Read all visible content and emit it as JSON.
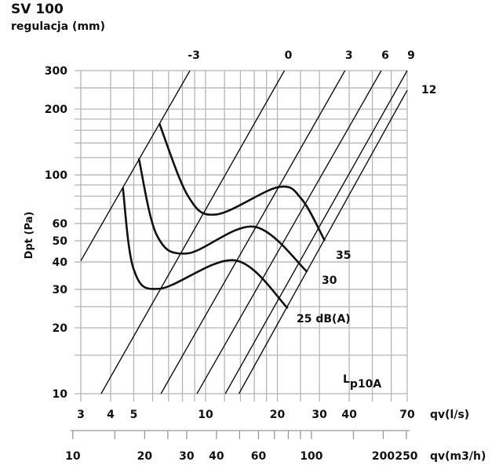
{
  "chart_data": {
    "type": "line",
    "title": "SV 100",
    "subtitle": "regulacja (mm)",
    "xlabel": "qv(l/s)",
    "xlabel2": "qv(m3/h)",
    "ylabel": "Dpt (Pa)",
    "xscale": "log",
    "yscale": "log",
    "xlim": [
      3,
      70
    ],
    "ylim": [
      10,
      300
    ],
    "grid": true,
    "x_grid": [
      3,
      4,
      5,
      6,
      7,
      8,
      9,
      10,
      12,
      14,
      16,
      18,
      20,
      25,
      30,
      40,
      50,
      60,
      70
    ],
    "y_grid": [
      10,
      15,
      20,
      25,
      30,
      40,
      50,
      60,
      70,
      80,
      90,
      100,
      120,
      140,
      160,
      180,
      200,
      250,
      300
    ],
    "x_tick_labels": [
      "3",
      "4",
      "5",
      "10",
      "20",
      "30",
      "40",
      "70"
    ],
    "y_tick_labels": [
      "300",
      "200",
      "100",
      "60",
      "50",
      "40",
      "30",
      "20",
      "10"
    ],
    "x2_ticks": [
      10,
      15,
      20,
      25,
      30,
      40,
      50,
      60,
      70,
      80,
      90,
      100,
      150,
      200,
      250
    ],
    "x2_tick_labels": [
      "10",
      "20",
      "30",
      "40",
      "60",
      "100",
      "200",
      "250"
    ],
    "regulation_lines": [
      {
        "name": "-3",
        "points": [
          [
            3,
            40.5
          ],
          [
            8.6,
            300
          ]
        ]
      },
      {
        "name": "0",
        "points": [
          [
            3.65,
            10
          ],
          [
            21.4,
            300
          ]
        ]
      },
      {
        "name": "3",
        "points": [
          [
            6.5,
            10
          ],
          [
            38.4,
            300
          ]
        ]
      },
      {
        "name": "6",
        "points": [
          [
            9.2,
            10
          ],
          [
            54.5,
            300
          ]
        ]
      },
      {
        "name": "9",
        "points": [
          [
            12.1,
            10
          ],
          [
            70,
            300
          ]
        ]
      },
      {
        "name": "12",
        "points": [
          [
            13.8,
            10
          ],
          [
            70,
            244
          ]
        ]
      }
    ],
    "noise_curves": [
      {
        "name": "35",
        "points": [
          [
            6.4,
            172
          ],
          [
            8.45,
            80
          ],
          [
            11.1,
            66
          ],
          [
            20.2,
            88
          ],
          [
            25.4,
            77
          ],
          [
            31.6,
            50
          ]
        ]
      },
      {
        "name": "30",
        "points": [
          [
            5.25,
            119
          ],
          [
            6.25,
            53
          ],
          [
            8.4,
            43.8
          ],
          [
            16.0,
            58
          ],
          [
            26.7,
            36
          ]
        ]
      },
      {
        "name": "25 dB(A)",
        "points": [
          [
            4.5,
            87.6
          ],
          [
            5.0,
            37
          ],
          [
            6.43,
            30.2
          ],
          [
            13.3,
            40.7
          ],
          [
            22.1,
            24.6
          ]
        ]
      }
    ],
    "annotation": {
      "main": "L",
      "sub": "p10A"
    }
  }
}
